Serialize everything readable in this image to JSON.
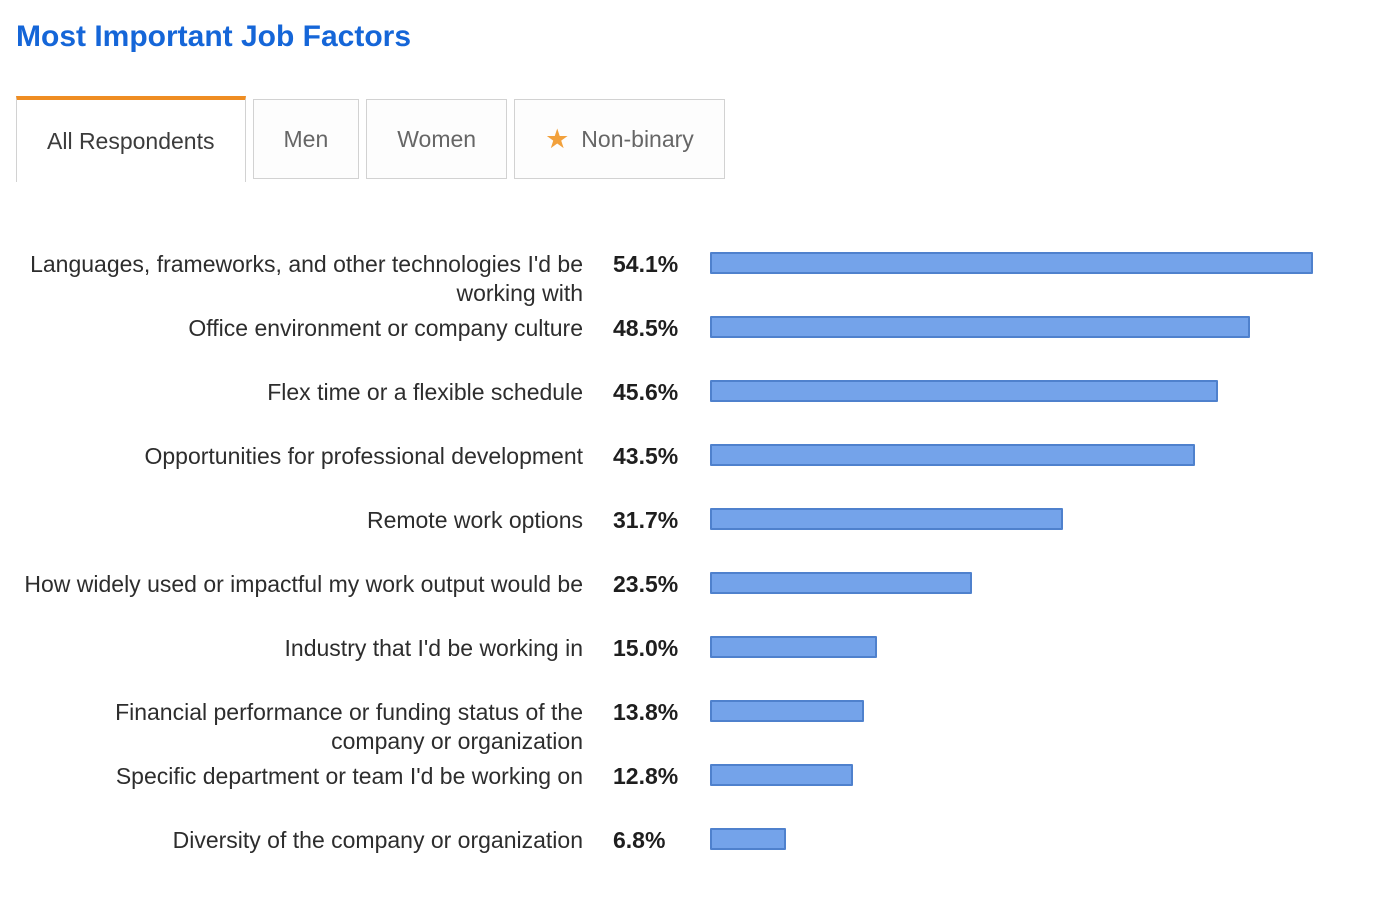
{
  "page": {
    "title": "Most Important Job Factors"
  },
  "tabs": [
    {
      "label": "All Respondents",
      "active": true
    },
    {
      "label": "Men",
      "active": false
    },
    {
      "label": "Women",
      "active": false
    },
    {
      "label": "Non-binary",
      "active": false,
      "icon": "star-icon"
    }
  ],
  "icons": {
    "star": "★"
  },
  "colors": {
    "title": "#1566d8",
    "tab_accent": "#ef8d22",
    "star": "#f2a13c",
    "bar_fill": "#74a3ea",
    "bar_border": "#4f81cd"
  },
  "chart_data": {
    "type": "bar",
    "orientation": "horizontal",
    "title": "Most Important Job Factors",
    "xlabel": "",
    "ylabel": "",
    "xlim": [
      0,
      56
    ],
    "grid": false,
    "legend": "none",
    "categories": [
      "Languages, frameworks, and other technologies I'd be working with",
      "Office environment or company culture",
      "Flex time or a flexible schedule",
      "Opportunities for professional development",
      "Remote work options",
      "How widely used or impactful my work output would be",
      "Industry that I'd be working in",
      "Financial performance or funding status of the company or organization",
      "Specific department or team I'd be working on",
      "Diversity of the company or organization"
    ],
    "values": [
      54.1,
      48.5,
      45.6,
      43.5,
      31.7,
      23.5,
      15.0,
      13.8,
      12.8,
      6.8
    ],
    "value_labels": [
      "54.1%",
      "48.5%",
      "45.6%",
      "43.5%",
      "31.7%",
      "23.5%",
      "15.0%",
      "13.8%",
      "12.8%",
      "6.8%"
    ]
  }
}
